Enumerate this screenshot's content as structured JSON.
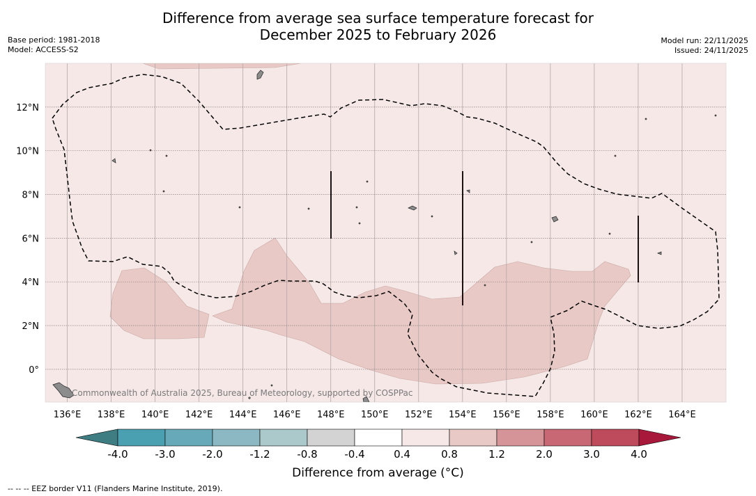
{
  "title": {
    "line1": "Difference from average sea surface temperature forecast for",
    "line2": "December 2025 to February 2026"
  },
  "meta_left": {
    "base_period": "Base period: 1981-2018",
    "model": "Model: ACCESS-S2"
  },
  "meta_right": {
    "model_run": "Model run: 22/11/2025",
    "issued": "Issued: 24/11/2025"
  },
  "watermark": "Commonwealth of Australia 2025, Bureau of Meteorology, supported by COSPPac",
  "map": {
    "lon_range": [
      135,
      166
    ],
    "lat_range": [
      -1.5,
      14
    ],
    "lon_ticks": [
      136,
      138,
      140,
      142,
      144,
      146,
      148,
      150,
      152,
      154,
      156,
      158,
      160,
      162,
      164
    ],
    "lat_ticks": [
      0,
      2,
      4,
      6,
      8,
      10,
      12
    ],
    "lon_labels": [
      "136°E",
      "138°E",
      "140°E",
      "142°E",
      "144°E",
      "146°E",
      "148°E",
      "150°E",
      "152°E",
      "154°E",
      "156°E",
      "158°E",
      "160°E",
      "162°E",
      "164°E"
    ],
    "lat_labels": [
      "0°",
      "2°N",
      "4°N",
      "6°N",
      "8°N",
      "10°N",
      "12°N"
    ],
    "background_class": "0.4 to 0.8",
    "background_color": "#f5e8e7",
    "warm_class": "0.8 to 1.2",
    "warm_color": "#e8c9c5"
  },
  "colorbar": {
    "colors": [
      "#4a9fb0",
      "#68a9b9",
      "#8bb8c2",
      "#abc9cb",
      "#d3d3d3",
      "#ffffff",
      "#f5e8e7",
      "#e8c9c5",
      "#d59497",
      "#c76874",
      "#bd4b5c"
    ],
    "under_color": "#3e7d82",
    "over_color": "#a8183a",
    "labels": [
      "-4.0",
      "-3.0",
      "-2.0",
      "-1.2",
      "-0.8",
      "-0.4",
      "0.4",
      "0.8",
      "1.2",
      "2.0",
      "3.0",
      "4.0"
    ],
    "title": "Difference from average ($^\\circ$C)",
    "title_display": "Difference from average (°C)"
  },
  "footnote": "--  --  -- EEZ border V11 (Flanders Marine Institute, 2019)."
}
